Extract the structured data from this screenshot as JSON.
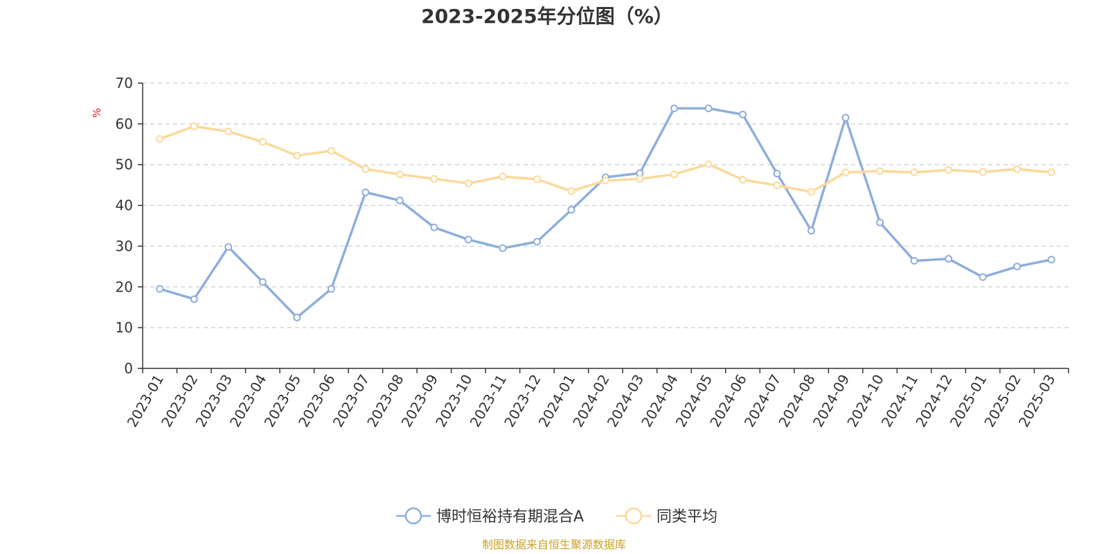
{
  "chart_data": {
    "type": "line",
    "title": "2023-2025年分位图（%）",
    "ylabel": "%",
    "ylim": [
      0,
      70
    ],
    "yticks": [
      0,
      10,
      20,
      30,
      40,
      50,
      60,
      70
    ],
    "grid": "horizontal-dashed",
    "legend_position": "bottom",
    "categories": [
      "2023-01",
      "2023-02",
      "2023-03",
      "2023-04",
      "2023-05",
      "2023-06",
      "2023-07",
      "2023-08",
      "2023-09",
      "2023-10",
      "2023-11",
      "2023-12",
      "2024-01",
      "2024-02",
      "2024-03",
      "2024-04",
      "2024-05",
      "2024-06",
      "2024-07",
      "2024-08",
      "2024-09",
      "2024-10",
      "2024-11",
      "2024-12",
      "2025-01",
      "2025-02",
      "2025-03"
    ],
    "series": [
      {
        "name": "博时恒裕持有期混合A",
        "color": "#8eaedb",
        "values": [
          19.5,
          17.0,
          29.8,
          21.2,
          12.5,
          19.5,
          43.2,
          41.2,
          34.6,
          31.6,
          29.5,
          31.1,
          38.9,
          46.9,
          47.9,
          63.8,
          63.8,
          62.3,
          47.8,
          33.8,
          61.5,
          35.8,
          26.4,
          26.9,
          22.4,
          25.0,
          26.7
        ]
      },
      {
        "name": "同类平均",
        "color": "#fbd99a",
        "values": [
          56.3,
          59.4,
          58.1,
          55.6,
          52.2,
          53.4,
          48.9,
          47.6,
          46.5,
          45.4,
          47.1,
          46.4,
          43.5,
          46.1,
          46.5,
          47.6,
          50.1,
          46.3,
          44.9,
          43.3,
          48.1,
          48.4,
          48.1,
          48.7,
          48.2,
          48.9,
          48.1
        ]
      }
    ],
    "source": "制图数据来自恒生聚源数据库",
    "unit_color": "#e8101e",
    "source_color": "#c9a227"
  }
}
